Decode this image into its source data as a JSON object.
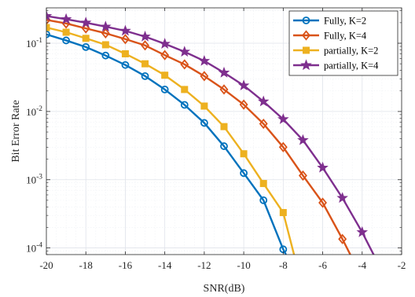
{
  "chart_data": {
    "type": "line",
    "xlabel": "SNR(dB)",
    "ylabel": "Bit Error Rate",
    "xlim": [
      -20,
      -2
    ],
    "ylim": [
      8e-05,
      0.33
    ],
    "yscale": "log",
    "grid": true,
    "legend_position": "top-right",
    "x_ticks": [
      -20,
      -18,
      -16,
      -14,
      -12,
      -10,
      -8,
      -6,
      -4,
      -2
    ],
    "x_tick_labels": [
      "-20",
      "-18",
      "-16",
      "-14",
      "-12",
      "-10",
      "-8",
      "-6",
      "-4",
      "-2"
    ],
    "y_ticks": [
      0.0001,
      0.001,
      0.01,
      0.1
    ],
    "y_tick_labels": [
      {
        "base": "10",
        "exp": "-4"
      },
      {
        "base": "10",
        "exp": "-3"
      },
      {
        "base": "10",
        "exp": "-2"
      },
      {
        "base": "10",
        "exp": "-1"
      }
    ],
    "series": [
      {
        "name": "Fully, K=2",
        "color": "#0072BD",
        "marker": "circle",
        "x": [
          -20,
          -19,
          -18,
          -17,
          -16,
          -15,
          -14,
          -13,
          -12,
          -11,
          -10,
          -9,
          -8,
          -7.5
        ],
        "y": [
          0.135,
          0.11,
          0.088,
          0.066,
          0.048,
          0.033,
          0.021,
          0.0125,
          0.0068,
          0.0031,
          0.00125,
          0.0005,
          9.55e-05,
          5e-05
        ]
      },
      {
        "name": "Fully, K=4",
        "color": "#D95319",
        "marker": "diamond",
        "x": [
          -20,
          -19,
          -18,
          -17,
          -16,
          -15,
          -14,
          -13,
          -12,
          -11,
          -10,
          -9,
          -8,
          -7,
          -6,
          -5,
          -4.5
        ],
        "y": [
          0.22,
          0.195,
          0.165,
          0.14,
          0.115,
          0.093,
          0.067,
          0.049,
          0.033,
          0.021,
          0.0126,
          0.0066,
          0.003,
          0.00115,
          0.00046,
          0.000135,
          7e-05
        ]
      },
      {
        "name": "partially, K=2",
        "color": "#EDB120",
        "marker": "square",
        "x": [
          -20,
          -19,
          -18,
          -17,
          -16,
          -15,
          -14,
          -13,
          -12,
          -11,
          -10,
          -9,
          -8,
          -7.4
        ],
        "y": [
          0.17,
          0.145,
          0.118,
          0.095,
          0.07,
          0.05,
          0.034,
          0.021,
          0.012,
          0.006,
          0.0024,
          0.00088,
          0.00033,
          7e-05
        ]
      },
      {
        "name": "partially, K=4",
        "color": "#7E2F8E",
        "marker": "star",
        "x": [
          -20,
          -19,
          -18,
          -17,
          -16,
          -15,
          -14,
          -13,
          -12,
          -11,
          -10,
          -9,
          -8,
          -7,
          -6,
          -5,
          -4,
          -3.2
        ],
        "y": [
          0.25,
          0.225,
          0.2,
          0.175,
          0.152,
          0.125,
          0.098,
          0.075,
          0.055,
          0.037,
          0.024,
          0.014,
          0.0077,
          0.0038,
          0.0015,
          0.00054,
          0.00017,
          6e-05
        ]
      }
    ]
  }
}
